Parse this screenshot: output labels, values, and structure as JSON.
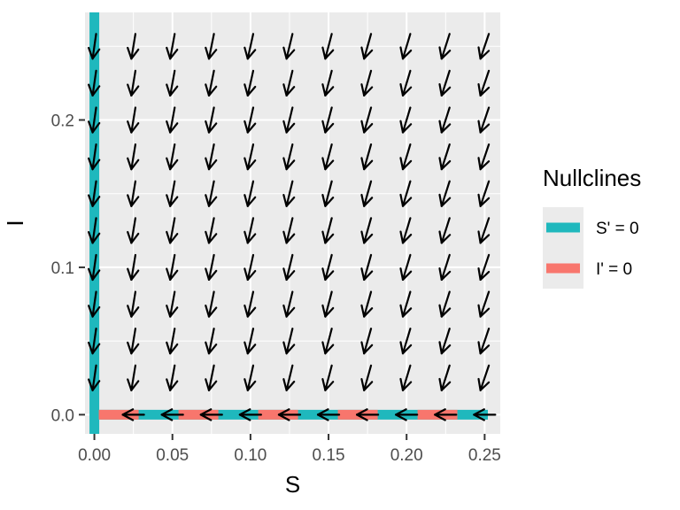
{
  "chart_data": {
    "type": "vector_field",
    "xlabel": "S",
    "ylabel": "I",
    "xlim": [
      -0.006,
      0.26
    ],
    "ylim": [
      -0.013,
      0.273
    ],
    "x_ticks": [
      0.0,
      0.05,
      0.1,
      0.15,
      0.2,
      0.25
    ],
    "x_tick_labels": [
      "0.00",
      "0.05",
      "0.10",
      "0.15",
      "0.20",
      "0.25"
    ],
    "y_ticks": [
      0.0,
      0.1,
      0.2
    ],
    "y_tick_labels": [
      "0.0",
      "0.1",
      "0.2"
    ],
    "grid": true,
    "field": {
      "x_values": [
        0.0,
        0.025,
        0.05,
        0.075,
        0.1,
        0.125,
        0.15,
        0.175,
        0.2,
        0.225,
        0.25
      ],
      "y_values": [
        0.0,
        0.025,
        0.05,
        0.075,
        0.1,
        0.125,
        0.15,
        0.175,
        0.2,
        0.225,
        0.25
      ],
      "arrow_color": "#000000"
    },
    "legend": {
      "title": "Nullclines",
      "position": "right",
      "entries": [
        {
          "label": "S' = 0",
          "color": "#1fb8bd"
        },
        {
          "label": "I' = 0",
          "color": "#f8766d"
        }
      ]
    },
    "nullclines": [
      {
        "name": "S' = 0",
        "color": "#1fb8bd",
        "segments": [
          {
            "x": [
              0.0,
              0.0
            ],
            "y": [
              -0.013,
              0.273
            ]
          },
          {
            "x": [
              0.0,
              0.26
            ],
            "y": [
              0.0,
              0.0
            ]
          }
        ]
      },
      {
        "name": "I' = 0",
        "color": "#f8766d",
        "segments": [
          {
            "x": [
              0.0,
              0.26
            ],
            "y": [
              0.0,
              0.0
            ]
          }
        ]
      }
    ]
  }
}
